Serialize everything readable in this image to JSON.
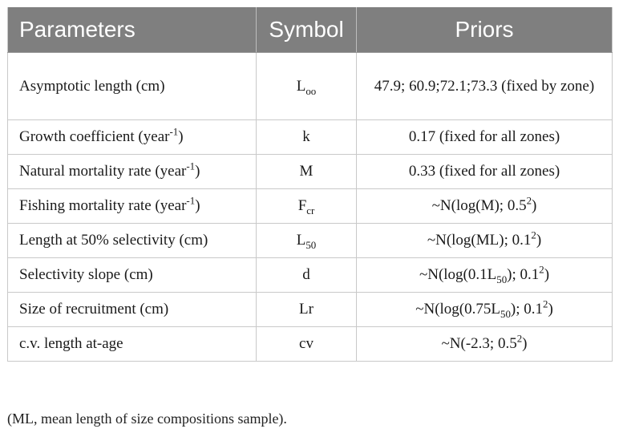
{
  "header": {
    "parameters": "Parameters",
    "symbol": "Symbol",
    "priors": "Priors"
  },
  "rows": [
    {
      "param": "Asymptotic length (cm)",
      "param_sup": "",
      "param_suffix": "",
      "sym_base": "L",
      "sym_sub": "oo",
      "prior_pre": "47.9; 60.9;72.1;73.3 (fixed by zone)",
      "prior_sub": "",
      "prior_mid": "",
      "prior_sup": "",
      "prior_post": ""
    },
    {
      "param": "Growth coefficient (year",
      "param_sup": "-1",
      "param_suffix": ")",
      "sym_base": "k",
      "sym_sub": "",
      "prior_pre": "0.17 (fixed for all zones)",
      "prior_sub": "",
      "prior_mid": "",
      "prior_sup": "",
      "prior_post": ""
    },
    {
      "param": "Natural mortality rate (year",
      "param_sup": "-1",
      "param_suffix": ")",
      "sym_base": "M",
      "sym_sub": "",
      "prior_pre": "0.33 (fixed for all zones)",
      "prior_sub": "",
      "prior_mid": "",
      "prior_sup": "",
      "prior_post": ""
    },
    {
      "param": "Fishing mortality rate (year",
      "param_sup": "-1",
      "param_suffix": ")",
      "sym_base": "F",
      "sym_sub": "cr",
      "prior_pre": "~N(log(M); 0.5",
      "prior_sub": "",
      "prior_mid": "",
      "prior_sup": "2",
      "prior_post": ")"
    },
    {
      "param": "Length at 50% selectivity (cm)",
      "param_sup": "",
      "param_suffix": "",
      "sym_base": "L",
      "sym_sub": "50",
      "prior_pre": "~N(log(ML); 0.1",
      "prior_sub": "",
      "prior_mid": "",
      "prior_sup": "2",
      "prior_post": ")"
    },
    {
      "param": "Selectivity slope (cm)",
      "param_sup": "",
      "param_suffix": "",
      "sym_base": "d",
      "sym_sub": "",
      "prior_pre": "~N(log(0.1L",
      "prior_sub": "50",
      "prior_mid": "); 0.1",
      "prior_sup": "2",
      "prior_post": ")"
    },
    {
      "param": "Size of recruitment (cm)",
      "param_sup": "",
      "param_suffix": "",
      "sym_base": "Lr",
      "sym_sub": "",
      "prior_pre": "~N(log(0.75L",
      "prior_sub": "50",
      "prior_mid": "); 0.1",
      "prior_sup": "2",
      "prior_post": ")"
    },
    {
      "param": "c.v. length at-age",
      "param_sup": "",
      "param_suffix": "",
      "sym_base": "cv",
      "sym_sub": "",
      "prior_pre": "~N(-2.3; 0.5",
      "prior_sub": "",
      "prior_mid": "",
      "prior_sup": "2",
      "prior_post": ")"
    }
  ],
  "footnote": "(ML, mean length of size compositions sample)."
}
